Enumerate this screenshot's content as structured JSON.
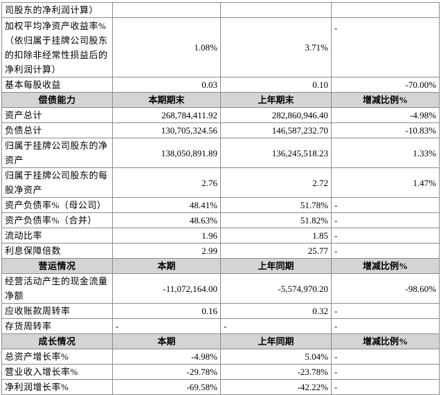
{
  "table": {
    "rows": [
      [
        "司股东的净利润计算）"
      ],
      [
        "加权平均净资产收益率%（依归属于挂牌公司股东的扣除非经常性损益后的净利润计算）",
        "1.08%",
        "3.71%",
        "-"
      ],
      [
        "基本每股收益",
        "0.03",
        "0.10",
        "-70.00%"
      ],
      [
        "偿债能力",
        "本期期末",
        "上年期末",
        "增减比例%"
      ],
      [
        "资产总计",
        "268,784,411.92",
        "282,860,946.40",
        "-4.98%"
      ],
      [
        "负债总计",
        "130,705,324.56",
        "146,587,232.70",
        "-10.83%"
      ],
      [
        "归属于挂牌公司股东的净资产",
        "138,050,891.89",
        "136,245,518.23",
        "1.33%"
      ],
      [
        "归属于挂牌公司股东的每股净资产",
        "2.76",
        "2.72",
        "1.47%"
      ],
      [
        "资产负债率%（母公司）",
        "48.41%",
        "51.78%",
        "-"
      ],
      [
        "资产负债率%（合并）",
        "48.63%",
        "51.82%",
        "-"
      ],
      [
        "流动比率",
        "1.96",
        "1.85",
        "-"
      ],
      [
        "利息保障倍数",
        "2.99",
        "25.77",
        "-"
      ],
      [
        "营运情况",
        "本期",
        "上年同期",
        "增减比例%"
      ],
      [
        "经营活动产生的现金流量净额",
        "-11,072,164.00",
        "-5,574,970.20",
        "-98.60%"
      ],
      [
        "应收账款周转率",
        "0.16",
        "0.32",
        "-"
      ],
      [
        "存货周转率",
        "-",
        "-",
        "-"
      ],
      [
        "成长情况",
        "本期",
        "上年同期",
        "增减比例%"
      ],
      [
        "总资产增长率%",
        "-4.98%",
        "5.04%",
        "-"
      ],
      [
        "营业收入增长率%",
        "-29.78%",
        "-23.78%",
        "-"
      ],
      [
        "净利润增长率%",
        "-69.58%",
        "-42.22%",
        "-"
      ]
    ]
  }
}
